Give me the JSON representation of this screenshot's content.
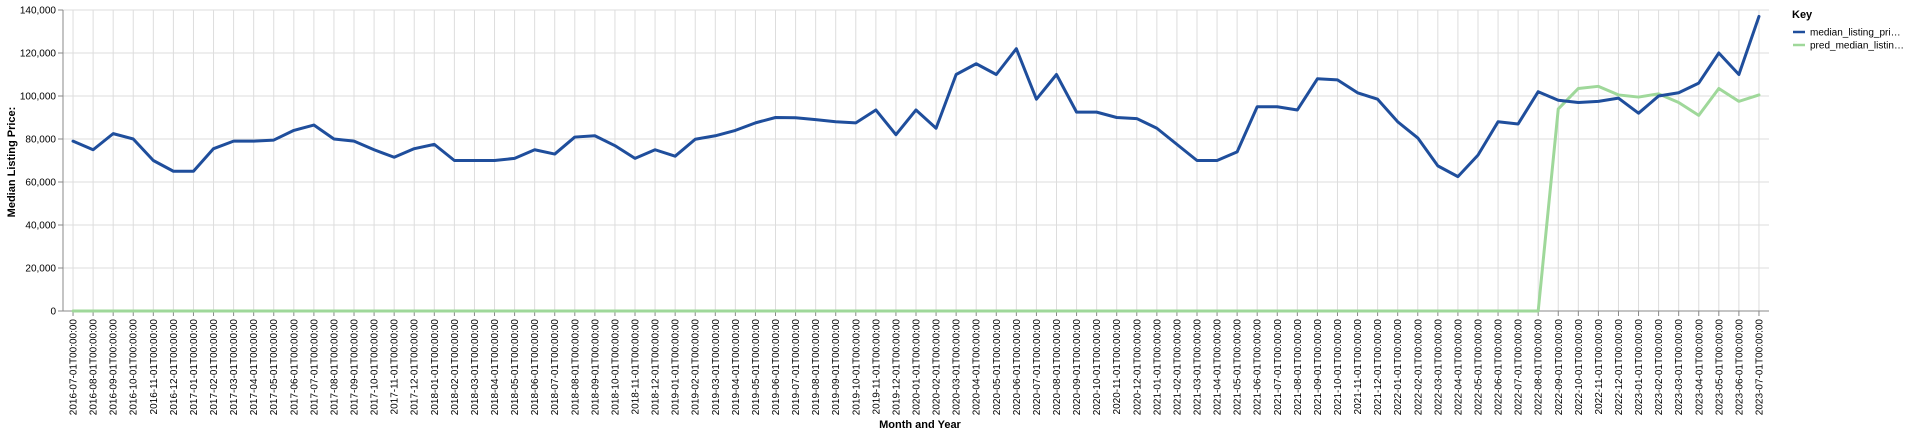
{
  "chart_data": {
    "type": "line",
    "xlabel": "Month and Year",
    "ylabel": "Median Listing Price:",
    "ylim": [
      0,
      140000
    ],
    "yticks": [
      "0",
      "20,000",
      "40,000",
      "60,000",
      "80,000",
      "100,000",
      "120,000",
      "140,000"
    ],
    "ytick_values": [
      0,
      20000,
      40000,
      60000,
      80000,
      100000,
      120000,
      140000
    ],
    "grid": true,
    "legend": {
      "title": "Key",
      "placement": "right"
    },
    "x": [
      "2016-07-01T00:00:00",
      "2016-08-01T00:00:00",
      "2016-09-01T00:00:00",
      "2016-10-01T00:00:00",
      "2016-11-01T00:00:00",
      "2016-12-01T00:00:00",
      "2017-01-01T00:00:00",
      "2017-02-01T00:00:00",
      "2017-03-01T00:00:00",
      "2017-04-01T00:00:00",
      "2017-05-01T00:00:00",
      "2017-06-01T00:00:00",
      "2017-07-01T00:00:00",
      "2017-08-01T00:00:00",
      "2017-09-01T00:00:00",
      "2017-10-01T00:00:00",
      "2017-11-01T00:00:00",
      "2017-12-01T00:00:00",
      "2018-01-01T00:00:00",
      "2018-02-01T00:00:00",
      "2018-03-01T00:00:00",
      "2018-04-01T00:00:00",
      "2018-05-01T00:00:00",
      "2018-06-01T00:00:00",
      "2018-07-01T00:00:00",
      "2018-08-01T00:00:00",
      "2018-09-01T00:00:00",
      "2018-10-01T00:00:00",
      "2018-11-01T00:00:00",
      "2018-12-01T00:00:00",
      "2019-01-01T00:00:00",
      "2019-02-01T00:00:00",
      "2019-03-01T00:00:00",
      "2019-04-01T00:00:00",
      "2019-05-01T00:00:00",
      "2019-06-01T00:00:00",
      "2019-07-01T00:00:00",
      "2019-08-01T00:00:00",
      "2019-09-01T00:00:00",
      "2019-10-01T00:00:00",
      "2019-11-01T00:00:00",
      "2019-12-01T00:00:00",
      "2020-01-01T00:00:00",
      "2020-02-01T00:00:00",
      "2020-03-01T00:00:00",
      "2020-04-01T00:00:00",
      "2020-05-01T00:00:00",
      "2020-06-01T00:00:00",
      "2020-07-01T00:00:00",
      "2020-08-01T00:00:00",
      "2020-09-01T00:00:00",
      "2020-10-01T00:00:00",
      "2020-11-01T00:00:00",
      "2020-12-01T00:00:00",
      "2021-01-01T00:00:00",
      "2021-02-01T00:00:00",
      "2021-03-01T00:00:00",
      "2021-04-01T00:00:00",
      "2021-05-01T00:00:00",
      "2021-06-01T00:00:00",
      "2021-07-01T00:00:00",
      "2021-08-01T00:00:00",
      "2021-09-01T00:00:00",
      "2021-10-01T00:00:00",
      "2021-11-01T00:00:00",
      "2021-12-01T00:00:00",
      "2022-01-01T00:00:00",
      "2022-02-01T00:00:00",
      "2022-03-01T00:00:00",
      "2022-04-01T00:00:00",
      "2022-05-01T00:00:00",
      "2022-06-01T00:00:00",
      "2022-07-01T00:00:00",
      "2022-08-01T00:00:00",
      "2022-09-01T00:00:00",
      "2022-10-01T00:00:00",
      "2022-11-01T00:00:00",
      "2022-12-01T00:00:00",
      "2023-01-01T00:00:00",
      "2023-02-01T00:00:00",
      "2023-03-01T00:00:00",
      "2023-04-01T00:00:00",
      "2023-05-01T00:00:00",
      "2023-06-01T00:00:00",
      "2023-07-01T00:00:00"
    ],
    "series": [
      {
        "name": "median_listing_pri…",
        "color": "#1f4e9c",
        "values": [
          79000,
          75000,
          82500,
          80000,
          70000,
          65000,
          65000,
          75500,
          79000,
          79000,
          79500,
          84000,
          86500,
          80000,
          79000,
          75000,
          71500,
          75500,
          77500,
          70000,
          70000,
          70000,
          71000,
          75000,
          73000,
          80900,
          81500,
          76900,
          71000,
          75000,
          72000,
          79900,
          81500,
          84000,
          87500,
          90000,
          89900,
          89000,
          88000,
          87500,
          93500,
          82000,
          93500,
          85000,
          110000,
          115000,
          110000,
          122000,
          98500,
          110000,
          92500,
          92500,
          90000,
          89500,
          85000,
          77500,
          70000,
          70000,
          74000,
          95000,
          95000,
          93500,
          108000,
          107500,
          101500,
          98500,
          88000,
          80500,
          67500,
          62500,
          72500,
          88000,
          87000,
          102000,
          98000,
          97000,
          97500,
          99000,
          92000,
          100000,
          101500,
          106000,
          120000,
          110000,
          137000
        ]
      },
      {
        "name": "pred_median_listin…",
        "color": "#9fd89a",
        "values": [
          0,
          0,
          0,
          0,
          0,
          0,
          0,
          0,
          0,
          0,
          0,
          0,
          0,
          0,
          0,
          0,
          0,
          0,
          0,
          0,
          0,
          0,
          0,
          0,
          0,
          0,
          0,
          0,
          0,
          0,
          0,
          0,
          0,
          0,
          0,
          0,
          0,
          0,
          0,
          0,
          0,
          0,
          0,
          0,
          0,
          0,
          0,
          0,
          0,
          0,
          0,
          0,
          0,
          0,
          0,
          0,
          0,
          0,
          0,
          0,
          0,
          0,
          0,
          0,
          0,
          0,
          0,
          0,
          0,
          0,
          0,
          0,
          0,
          0,
          94000,
          103500,
          104500,
          100500,
          99500,
          101000,
          97000,
          91000,
          103500,
          97500,
          100500
        ]
      }
    ]
  }
}
